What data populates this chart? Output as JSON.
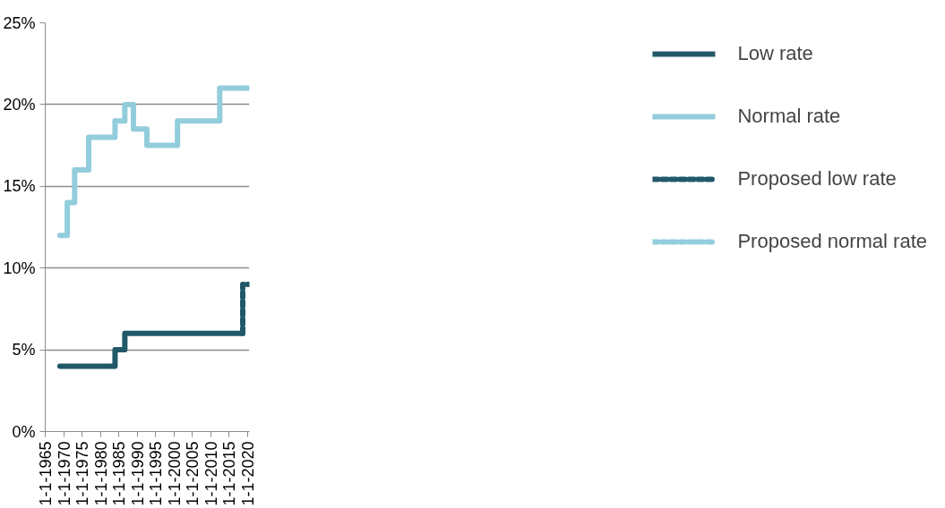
{
  "chart_data": {
    "type": "step",
    "xlim": [
      "1965-01-01",
      "2020-08-01"
    ],
    "xticks": [
      {
        "value": "1965-01-01",
        "label": "1-1-1965"
      },
      {
        "value": "1970-01-01",
        "label": "1-1-1970"
      },
      {
        "value": "1975-01-01",
        "label": "1-1-1975"
      },
      {
        "value": "1980-01-01",
        "label": "1-1-1980"
      },
      {
        "value": "1985-01-01",
        "label": "1-1-1985"
      },
      {
        "value": "1990-01-01",
        "label": "1-1-1990"
      },
      {
        "value": "1995-01-01",
        "label": "1-1-1995"
      },
      {
        "value": "2000-01-01",
        "label": "1-1-2000"
      },
      {
        "value": "2005-01-01",
        "label": "1-1-2005"
      },
      {
        "value": "2010-01-01",
        "label": "1-1-2010"
      },
      {
        "value": "2015-01-01",
        "label": "1-1-2015"
      },
      {
        "value": "2020-01-01",
        "label": "1-1-2020"
      }
    ],
    "ylim": [
      0,
      25
    ],
    "yticks": [
      {
        "value": 0,
        "label": "0%"
      },
      {
        "value": 5,
        "label": "5%"
      },
      {
        "value": 10,
        "label": "10%"
      },
      {
        "value": 15,
        "label": "15%"
      },
      {
        "value": 20,
        "label": "20%"
      },
      {
        "value": 25,
        "label": "25%"
      }
    ],
    "grid": "y",
    "legend": "right",
    "series": [
      {
        "name": "Low rate",
        "color": "#215968",
        "line_style": "solid",
        "x": [
          "1969-01",
          "1984-01",
          "1986-09",
          "2018-10"
        ],
        "values": [
          4,
          5,
          6,
          6
        ]
      },
      {
        "name": "Normal rate",
        "color": "#92cddc",
        "line_style": "solid",
        "x": [
          "1969-01",
          "1971-01",
          "1973-01",
          "1976-11",
          "1984-01",
          "1986-09",
          "1989-01",
          "1992-09",
          "2001-01",
          "2012-07",
          "2018-10"
        ],
        "values": [
          12,
          14,
          16,
          18,
          19,
          20,
          18.5,
          17.5,
          19,
          21,
          21
        ]
      },
      {
        "name": "Proposed low rate",
        "color": "#215968",
        "line_style": "dashed",
        "x": [
          "2018-10",
          "2018-10",
          "2020-08"
        ],
        "values": [
          6,
          9,
          9
        ]
      },
      {
        "name": "Proposed normal rate",
        "color": "#92cddc",
        "line_style": "dashed",
        "x": [
          "2018-10",
          "2020-08"
        ],
        "values": [
          21,
          21
        ]
      }
    ]
  }
}
